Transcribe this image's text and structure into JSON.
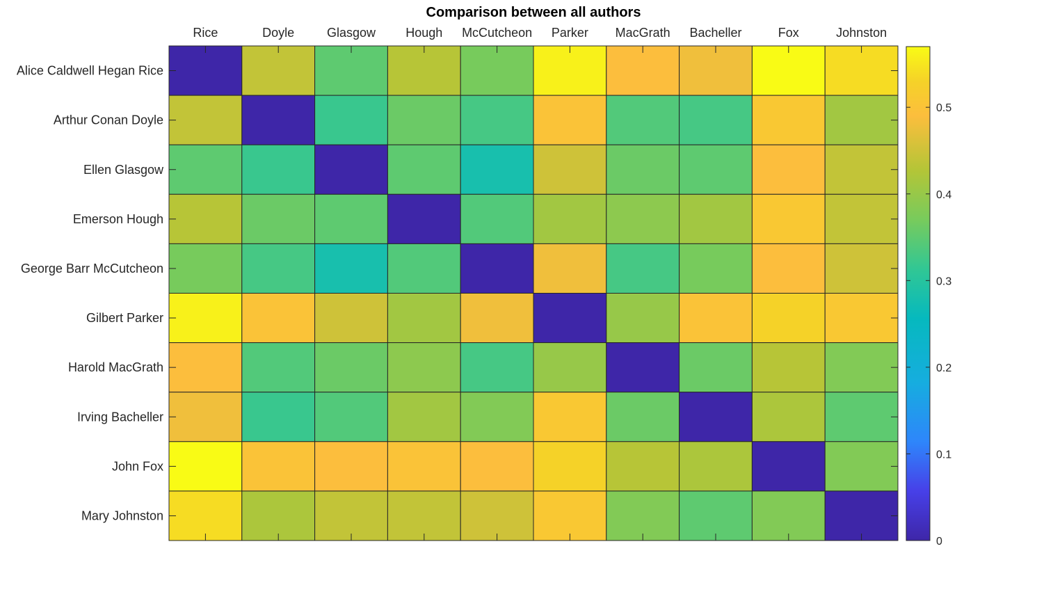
{
  "chart_data": {
    "type": "heatmap",
    "title": "Comparison between all authors",
    "x_categories": [
      "Rice",
      "Doyle",
      "Glasgow",
      "Hough",
      "McCutcheon",
      "Parker",
      "MacGrath",
      "Bacheller",
      "Fox",
      "Johnston"
    ],
    "y_categories": [
      "Alice Caldwell Hegan Rice",
      "Arthur Conan Doyle",
      "Ellen Glasgow",
      "Emerson Hough",
      "George Barr McCutcheon",
      "Gilbert Parker",
      "Harold MacGrath",
      "Irving Bacheller",
      "John Fox",
      "Mary Johnston"
    ],
    "values": [
      [
        0.0,
        0.44,
        0.35,
        0.43,
        0.37,
        0.56,
        0.49,
        0.48,
        0.57,
        0.54
      ],
      [
        0.44,
        0.0,
        0.32,
        0.36,
        0.33,
        0.5,
        0.34,
        0.33,
        0.51,
        0.41
      ],
      [
        0.35,
        0.32,
        0.0,
        0.35,
        0.28,
        0.45,
        0.36,
        0.35,
        0.49,
        0.44
      ],
      [
        0.43,
        0.36,
        0.35,
        0.0,
        0.34,
        0.41,
        0.39,
        0.41,
        0.51,
        0.44
      ],
      [
        0.37,
        0.33,
        0.28,
        0.34,
        0.0,
        0.48,
        0.33,
        0.37,
        0.49,
        0.45
      ],
      [
        0.56,
        0.5,
        0.45,
        0.41,
        0.48,
        0.0,
        0.4,
        0.5,
        0.53,
        0.51
      ],
      [
        0.49,
        0.34,
        0.36,
        0.39,
        0.33,
        0.4,
        0.0,
        0.36,
        0.43,
        0.38
      ],
      [
        0.48,
        0.32,
        0.34,
        0.41,
        0.38,
        0.51,
        0.36,
        0.0,
        0.42,
        0.35
      ],
      [
        0.57,
        0.5,
        0.49,
        0.5,
        0.49,
        0.53,
        0.43,
        0.42,
        0.0,
        0.38
      ],
      [
        0.54,
        0.42,
        0.44,
        0.44,
        0.45,
        0.51,
        0.38,
        0.35,
        0.38,
        0.0
      ]
    ],
    "colormap": "parula",
    "clim": [
      0,
      0.57
    ],
    "colorbar_ticks": [
      0,
      0.1,
      0.2,
      0.3,
      0.4,
      0.5
    ],
    "colorbar_tick_labels": [
      "0",
      "0.1",
      "0.2",
      "0.3",
      "0.4",
      "0.5"
    ],
    "x_axis_position": "top",
    "colorbar_location": "right"
  }
}
